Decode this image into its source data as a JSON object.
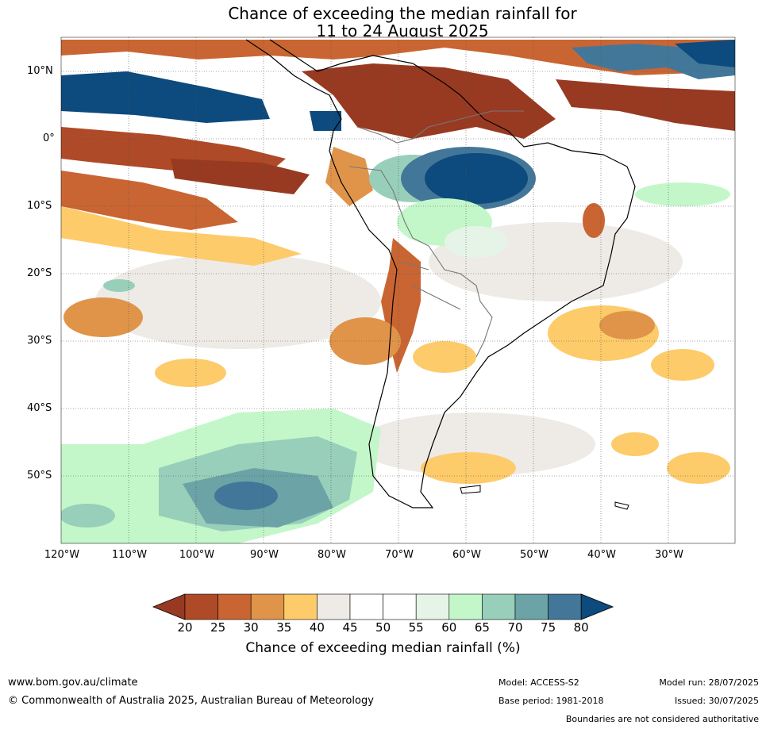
{
  "title_line1": "Chance of exceeding the median rainfall for",
  "title_line2": "11 to 24 August 2025",
  "lat_labels": [
    "10°N",
    "0°",
    "10°S",
    "20°S",
    "30°S",
    "40°S",
    "50°S"
  ],
  "lon_labels": [
    "120°W",
    "110°W",
    "100°W",
    "90°W",
    "80°W",
    "70°W",
    "60°W",
    "50°W",
    "40°W",
    "30°W"
  ],
  "colorbar": {
    "title": "Chance of exceeding median rainfall (%)",
    "ticks": [
      "20",
      "25",
      "30",
      "35",
      "40",
      "45",
      "50",
      "55",
      "60",
      "65",
      "70",
      "75",
      "80"
    ],
    "colors": [
      "#983a22",
      "#ae4a27",
      "#c96532",
      "#e0944a",
      "#fdcb6a",
      "#eeebe7",
      "#ffffff",
      "#ffffff",
      "#e6f4e7",
      "#c3f7c9",
      "#98cfba",
      "#6ba3a6",
      "#437799",
      "#0d4a7d"
    ]
  },
  "footer": {
    "site": "www.bom.gov.au/climate",
    "copyright": "© Commonwealth of Australia 2025, Australian Bureau of Meteorology",
    "model": "Model: ACCESS-S2",
    "base_period": "Base period: 1981-2018",
    "model_run": "Model run: 28/07/2025",
    "issued": "Issued: 30/07/2025",
    "boundaries": "Boundaries are not considered authoritative"
  },
  "icons": {
    "map": "rainfall-probability-map",
    "colorbar": "colorbar-legend"
  }
}
